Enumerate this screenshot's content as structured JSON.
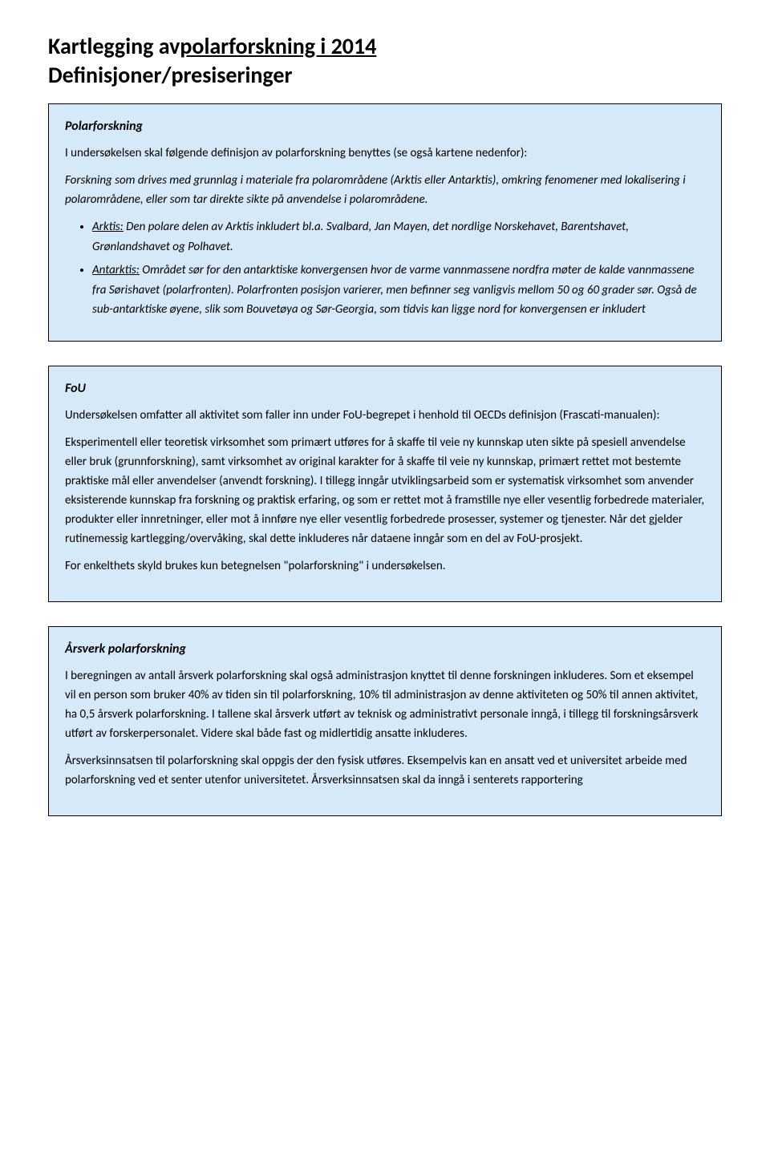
{
  "header": {
    "title_part1": "Kartlegging av ",
    "title_part2": "polarforskning i 2014",
    "subtitle": "Definisjoner/presiseringer"
  },
  "box1": {
    "heading": "Polarforskning",
    "p1": "I undersøkelsen skal følgende definisjon av polarforskning benyttes (se også kartene nedenfor):",
    "p2": "Forskning som drives med grunnlag i materiale fra polarområdene (Arktis eller Antarktis), omkring fenomener med lokalisering i polarområdene, eller som tar direkte sikte på anvendelse i polarområdene.",
    "bullet1_term": "Arktis:",
    "bullet1_text": " Den polare delen av Arktis inkludert bl.a. Svalbard, Jan Mayen, det nordlige Norskehavet, Barentshavet, Grønlandshavet og Polhavet.",
    "bullet2_term": "Antarktis:",
    "bullet2_text": " Området sør for den antarktiske konvergensen hvor de varme vannmassene nordfra møter de kalde vannmassene fra Sørishavet (polarfronten). Polarfronten posisjon varierer, men befinner seg vanligvis mellom 50 og 60 grader sør. Også de sub-antarktiske øyene, slik som Bouvetøya og Sør-Georgia, som tidvis kan ligge nord for konvergensen er inkludert"
  },
  "box2": {
    "heading": "FoU",
    "p1": "Undersøkelsen omfatter all aktivitet som faller inn under FoU-begrepet i henhold til OECDs definisjon (Frascati-manualen):",
    "p2": "Eksperimentell eller teoretisk virksomhet som primært utføres for å skaffe til veie ny kunnskap uten sikte på spesiell anvendelse eller bruk (grunnforskning), samt virksomhet av original karakter for å skaffe til veie ny kunnskap, primært rettet mot bestemte praktiske mål eller anvendelser (anvendt forskning). I tillegg inngår utviklingsarbeid som er systematisk virksomhet som anvender eksisterende kunnskap fra forskning og praktisk erfaring, og som er rettet mot å framstille nye eller vesentlig forbedrede materialer, produkter eller innretninger, eller mot å innføre nye eller vesentlig forbedrede prosesser, systemer og tjenester. Når det gjelder rutinemessig kartlegging/overvåking, skal dette inkluderes når dataene inngår som en del av FoU-prosjekt.",
    "p3": "For enkelthets skyld brukes kun betegnelsen \"polarforskning\" i undersøkelsen."
  },
  "box3": {
    "heading": "Årsverk polarforskning",
    "p1": "I beregningen av antall årsverk polarforskning skal også administrasjon knyttet til denne forskningen inkluderes. Som et eksempel vil en person som bruker 40% av tiden sin til polarforskning, 10% til administrasjon av denne aktiviteten og 50% til annen aktivitet, ha 0,5 årsverk polarforskning. I tallene skal årsverk utført av teknisk og administrativt personale inngå, i tillegg til forskningsårsverk utført av forskerpersonalet. Videre skal både fast og midlertidig ansatte inkluderes.",
    "p2": "Årsverksinnsatsen til polarforskning skal oppgis der den fysisk utføres. Eksempelvis kan en ansatt ved et universitet arbeide med polarforskning ved et senter utenfor universitetet. Årsverksinnsatsen skal da inngå i senterets rapportering"
  },
  "colors": {
    "box_background": "#d6e9f8",
    "box_border": "#000000",
    "page_background": "#ffffff"
  }
}
